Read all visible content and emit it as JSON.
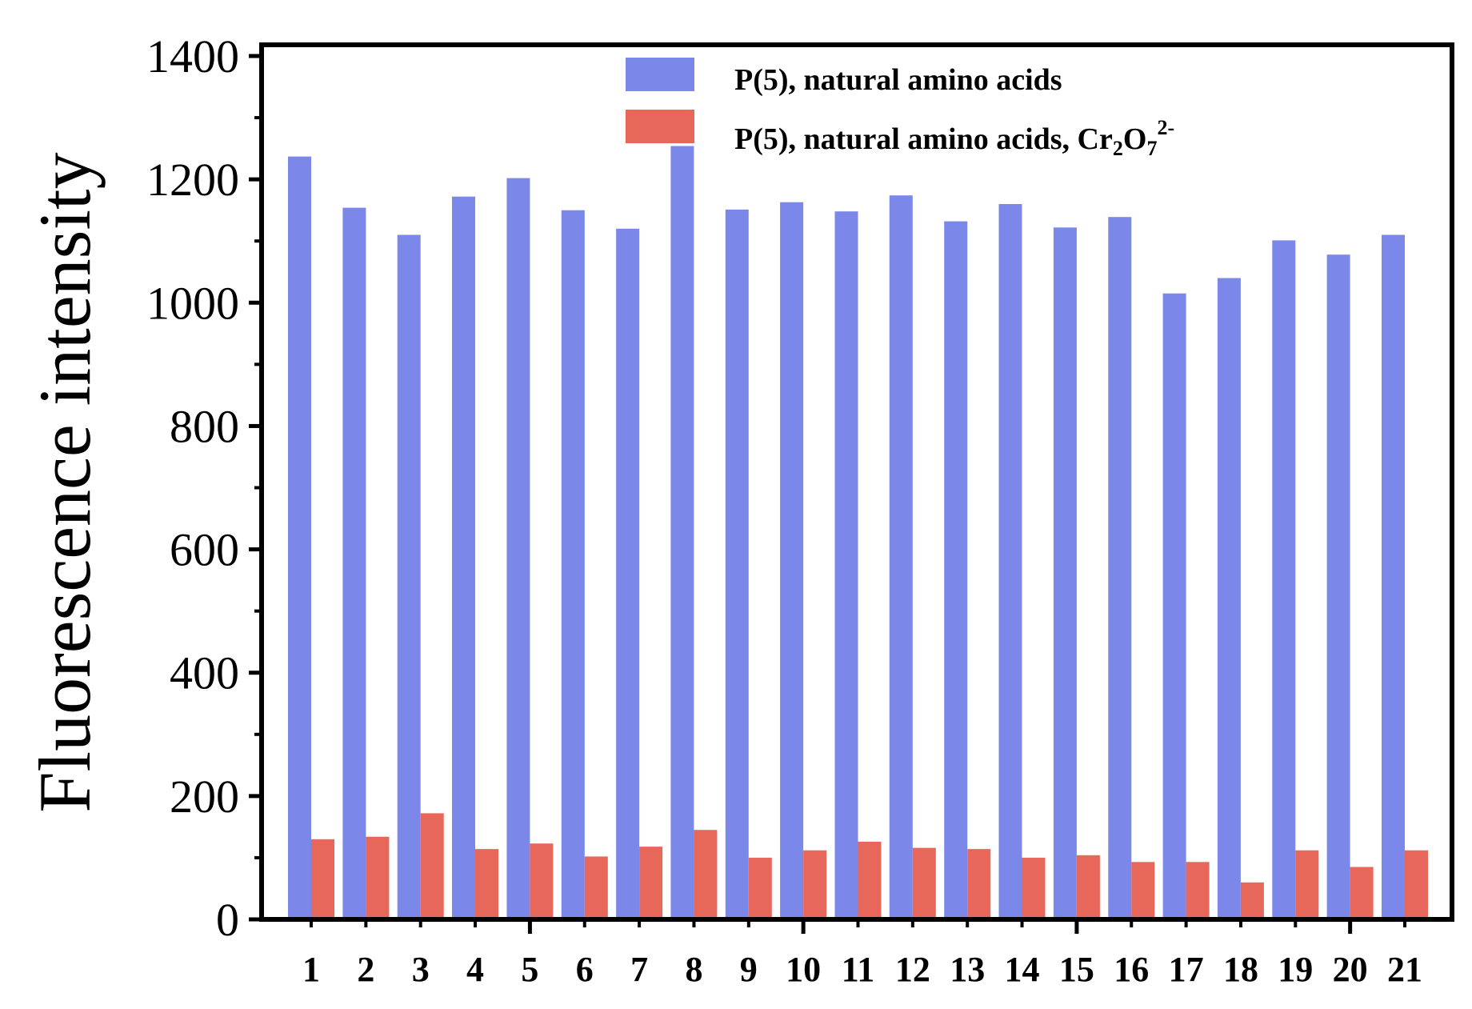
{
  "chart_data": {
    "type": "bar",
    "ylabel": "Fluorescence intensity",
    "xlabel": "",
    "ylim": [
      0,
      1400
    ],
    "yticks": [
      0,
      200,
      400,
      600,
      800,
      1000,
      1200,
      1400
    ],
    "categories": [
      "1",
      "2",
      "3",
      "4",
      "5",
      "6",
      "7",
      "8",
      "9",
      "10",
      "11",
      "12",
      "13",
      "14",
      "15",
      "16",
      "17",
      "18",
      "19",
      "20",
      "21"
    ],
    "series": [
      {
        "name": "P(5), natural amino acids",
        "color": "#7b88ea",
        "values": [
          1237,
          1154,
          1110,
          1172,
          1202,
          1150,
          1120,
          1254,
          1151,
          1163,
          1148,
          1174,
          1132,
          1160,
          1122,
          1139,
          1015,
          1040,
          1101,
          1078,
          1110
        ]
      },
      {
        "name": "P(5), natural amino acids, Cr2O72-",
        "label_parts": {
          "main": "P(5), natural amino acids, Cr",
          "sub1": "2",
          "mid": "O",
          "sub2": "7",
          "sup": "2-"
        },
        "color": "#e8675b",
        "values": [
          130,
          134,
          172,
          114,
          123,
          102,
          118,
          145,
          100,
          112,
          126,
          116,
          114,
          100,
          104,
          93,
          93,
          60,
          112,
          85,
          112
        ]
      }
    ],
    "legend": "top-right",
    "grid": false
  }
}
